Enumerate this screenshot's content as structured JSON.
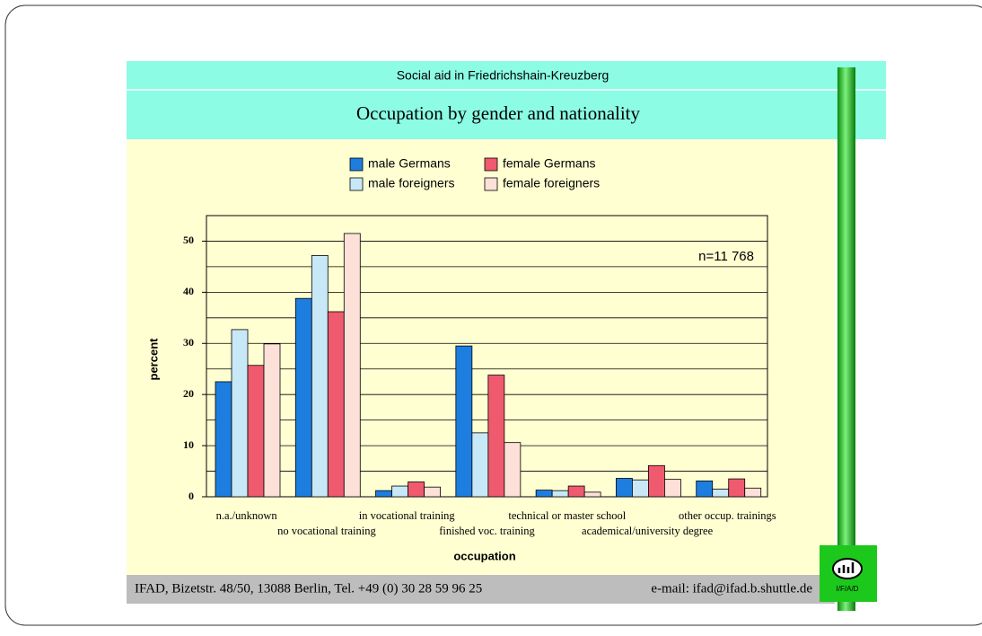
{
  "header": {
    "subtitle": "Social aid in Friedrichshain-Kreuzberg",
    "title": "Occupation by gender and nationality"
  },
  "chart_data": {
    "type": "bar",
    "categories": [
      "n.a./unknown",
      "no vocational training",
      "in vocational training",
      "finished voc. training",
      "technical or master school",
      "academical/university degree",
      "other occup. trainings"
    ],
    "series": [
      {
        "name": "male Germans",
        "color": "#1e7ee0",
        "values": [
          22.5,
          38.8,
          1.2,
          29.5,
          1.3,
          3.6,
          3.1
        ]
      },
      {
        "name": "male foreigners",
        "color": "#c8e8f8",
        "values": [
          32.7,
          47.2,
          2.1,
          12.5,
          1.2,
          3.3,
          1.5
        ]
      },
      {
        "name": "female Germans",
        "color": "#f05a6e",
        "values": [
          25.7,
          36.2,
          2.9,
          23.8,
          2.1,
          6.1,
          3.5
        ]
      },
      {
        "name": "female foreigners",
        "color": "#fde0d8",
        "values": [
          29.9,
          51.5,
          1.9,
          10.6,
          0.9,
          3.4,
          1.7
        ]
      }
    ],
    "ylim": [
      0,
      55
    ],
    "yticks": [
      0,
      10,
      20,
      30,
      40,
      50
    ],
    "ygrid": [
      5,
      10,
      15,
      20,
      25,
      30,
      35,
      40,
      45,
      50
    ],
    "ylabel": "percent",
    "xlabel": "occupation",
    "annotation": "n=11 768"
  },
  "footer": {
    "address": "IFAD, Bizetstr. 48/50, 13088 Berlin, Tel. +49 (0) 30 28 59 96 25",
    "email": "e-mail: ifad@ifad.b.shuttle.de",
    "logo": "I/F/A/D"
  }
}
